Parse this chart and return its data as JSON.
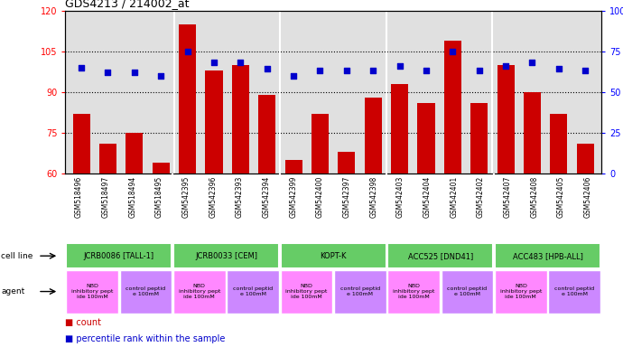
{
  "title": "GDS4213 / 214002_at",
  "samples": [
    "GSM518496",
    "GSM518497",
    "GSM518494",
    "GSM518495",
    "GSM542395",
    "GSM542396",
    "GSM542393",
    "GSM542394",
    "GSM542399",
    "GSM542400",
    "GSM542397",
    "GSM542398",
    "GSM542403",
    "GSM542404",
    "GSM542401",
    "GSM542402",
    "GSM542407",
    "GSM542408",
    "GSM542405",
    "GSM542406"
  ],
  "bar_values": [
    82,
    71,
    75,
    64,
    115,
    98,
    100,
    89,
    65,
    82,
    68,
    88,
    93,
    86,
    109,
    86,
    100,
    90,
    82,
    71
  ],
  "percentile_values": [
    65,
    62,
    62,
    60,
    75,
    68,
    68,
    64,
    60,
    63,
    63,
    63,
    66,
    63,
    75,
    63,
    66,
    68,
    64,
    63
  ],
  "ylim_left": [
    60,
    120
  ],
  "ylim_right": [
    0,
    100
  ],
  "yticks_left": [
    60,
    75,
    90,
    105,
    120
  ],
  "yticks_right": [
    0,
    25,
    50,
    75,
    100
  ],
  "bar_color": "#cc0000",
  "dot_color": "#0000cc",
  "plot_bg": "#e0e0e0",
  "sample_bg": "#cccccc",
  "cell_line_color": "#66cc66",
  "nbd_color": "#ff88ff",
  "control_color": "#cc88ff",
  "cell_lines": [
    {
      "label": "JCRB0086 [TALL-1]",
      "start": 0,
      "end": 4
    },
    {
      "label": "JCRB0033 [CEM]",
      "start": 4,
      "end": 8
    },
    {
      "label": "KOPT-K",
      "start": 8,
      "end": 12
    },
    {
      "label": "ACC525 [DND41]",
      "start": 12,
      "end": 16
    },
    {
      "label": "ACC483 [HPB-ALL]",
      "start": 16,
      "end": 20
    }
  ],
  "agent_groups": [
    {
      "label": "NBD\ninhibitory pept\nide 100mM",
      "start": 0,
      "end": 2,
      "type": "nbd"
    },
    {
      "label": "control peptid\ne 100mM",
      "start": 2,
      "end": 4,
      "type": "control"
    },
    {
      "label": "NBD\ninhibitory pept\nide 100mM",
      "start": 4,
      "end": 6,
      "type": "nbd"
    },
    {
      "label": "control peptid\ne 100mM",
      "start": 6,
      "end": 8,
      "type": "control"
    },
    {
      "label": "NBD\ninhibitory pept\nide 100mM",
      "start": 8,
      "end": 10,
      "type": "nbd"
    },
    {
      "label": "control peptid\ne 100mM",
      "start": 10,
      "end": 12,
      "type": "control"
    },
    {
      "label": "NBD\ninhibitory pept\nide 100mM",
      "start": 12,
      "end": 14,
      "type": "nbd"
    },
    {
      "label": "control peptid\ne 100mM",
      "start": 14,
      "end": 16,
      "type": "control"
    },
    {
      "label": "NBD\ninhibitory pept\nide 100mM",
      "start": 16,
      "end": 18,
      "type": "nbd"
    },
    {
      "label": "control peptid\ne 100mM",
      "start": 18,
      "end": 20,
      "type": "control"
    }
  ]
}
